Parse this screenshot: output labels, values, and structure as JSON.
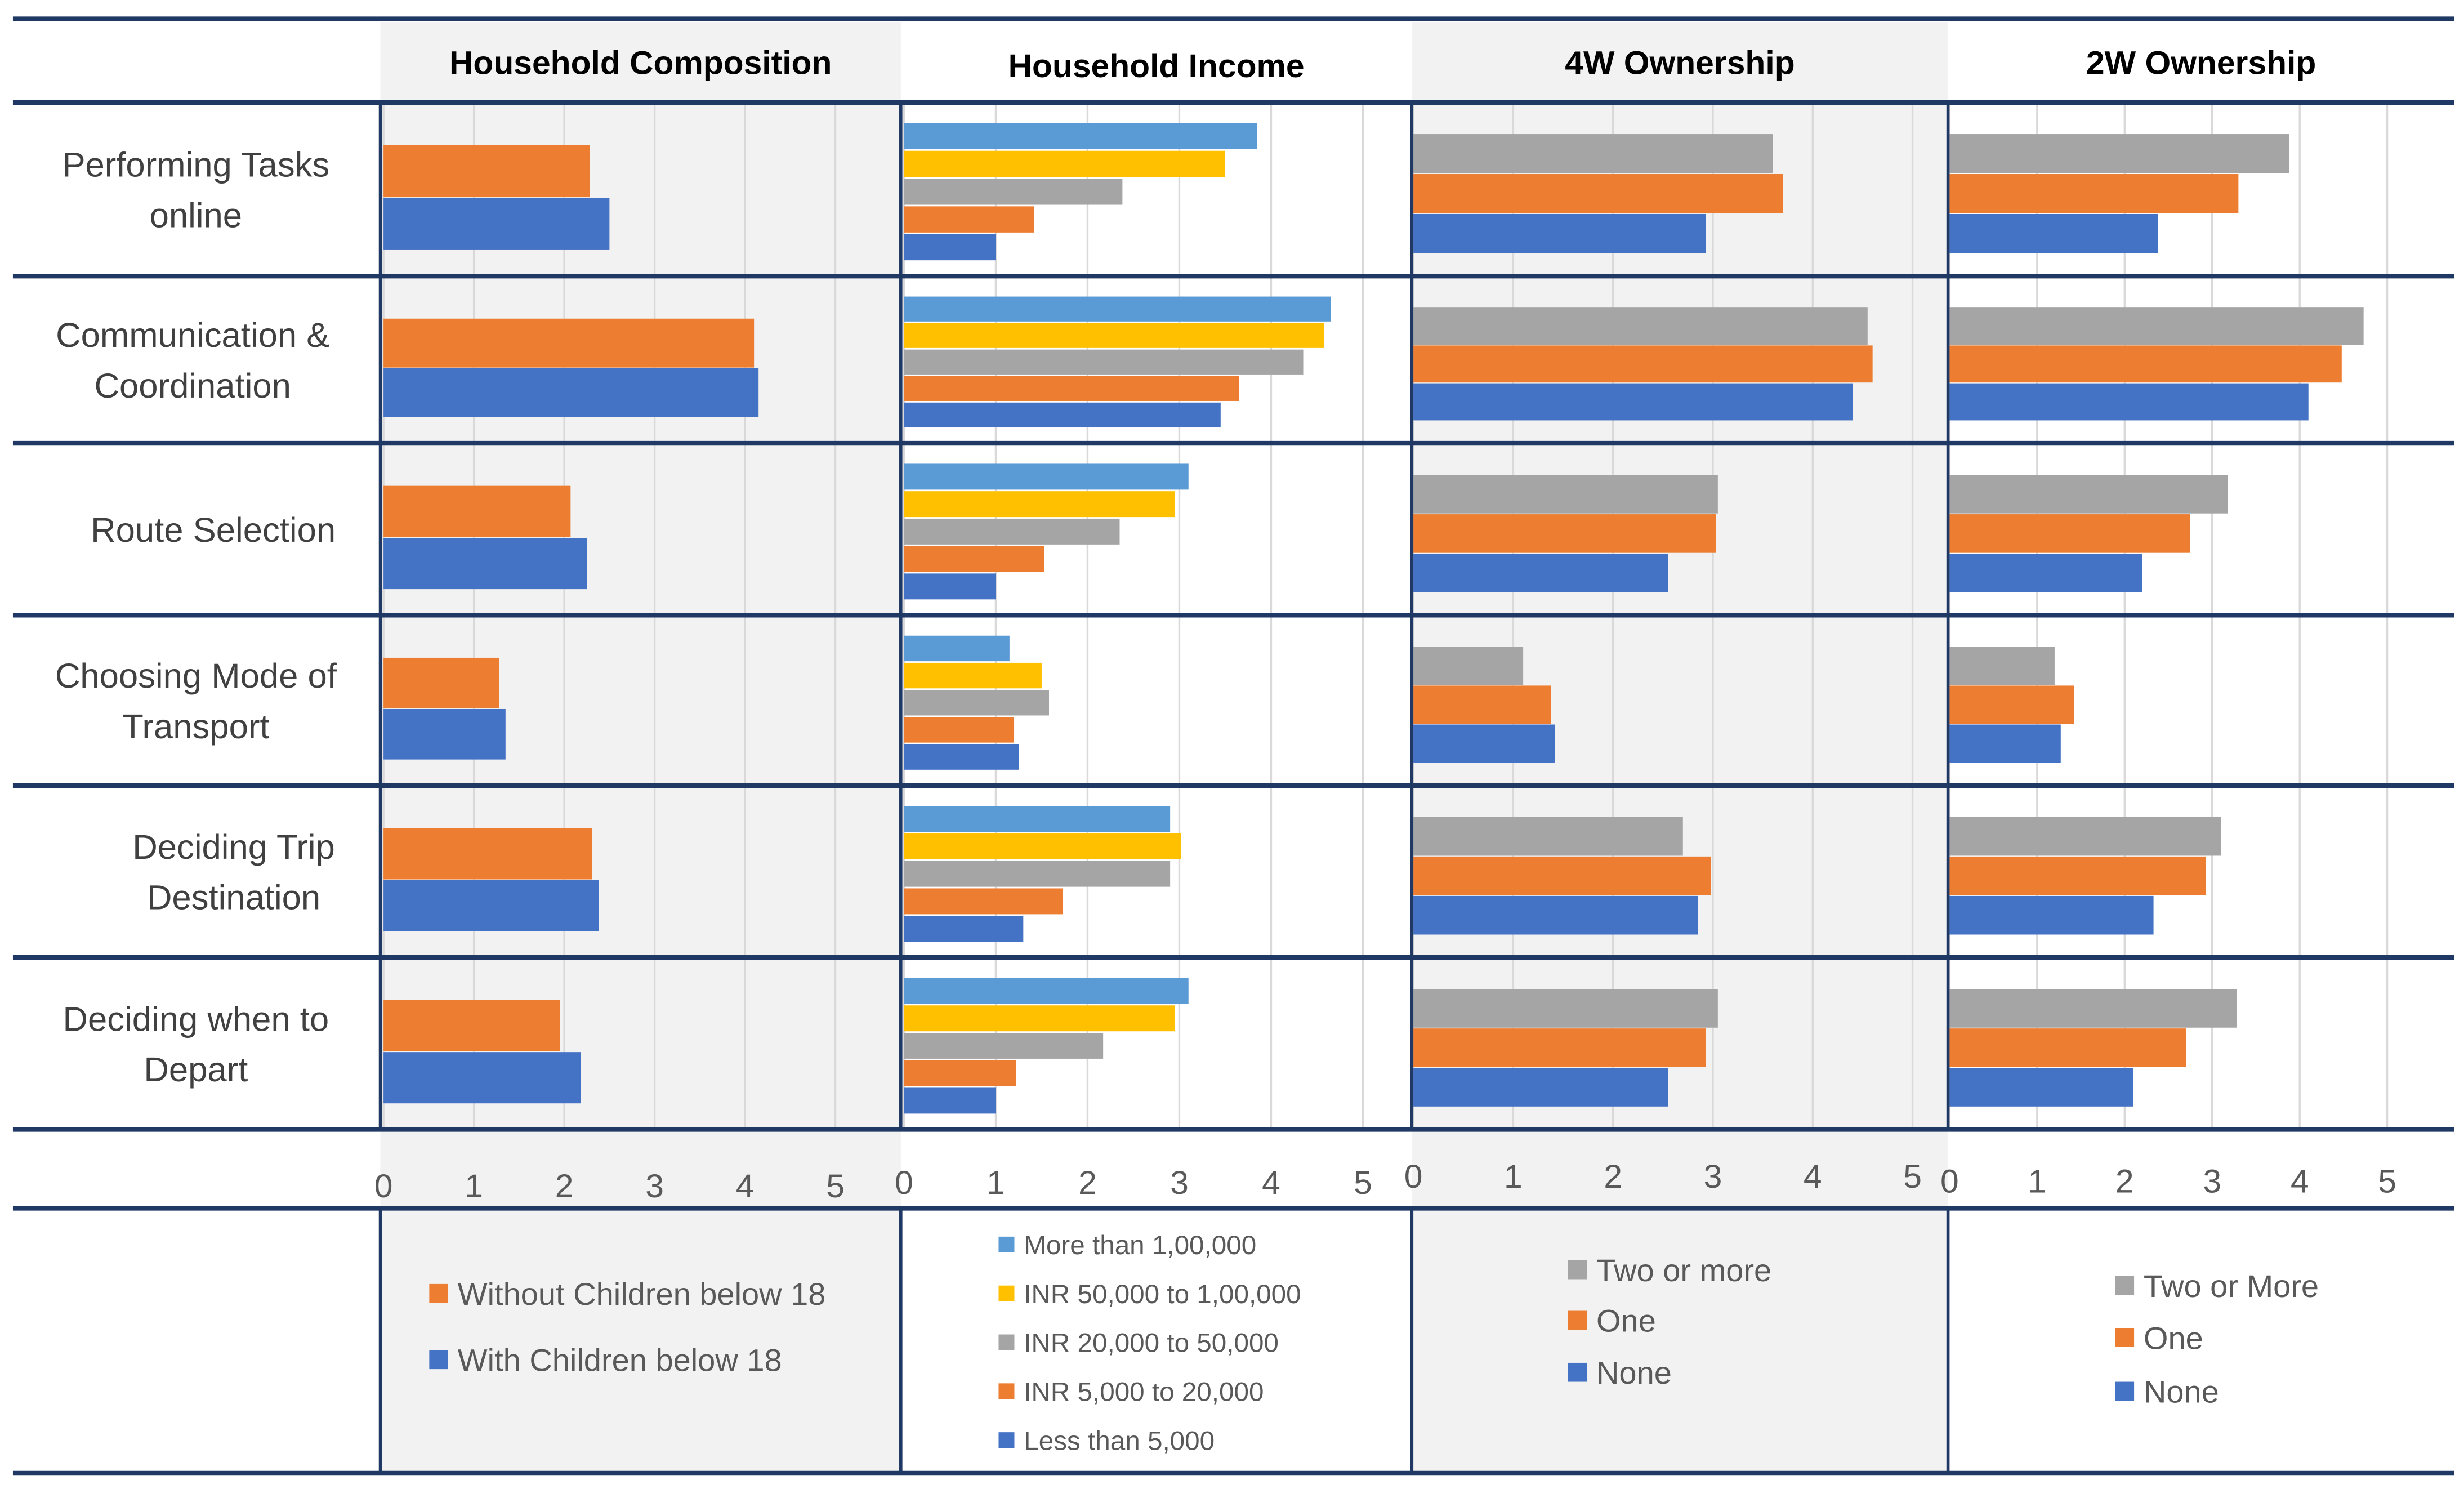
{
  "figure": {
    "rows": [
      "Performing Tasks online",
      "Communication & Coordination",
      "Route Selection",
      "Choosing Mode of Transport",
      "Deciding Trip Destination",
      "Deciding when to Depart"
    ],
    "axis_ticks": [
      "0",
      "1",
      "2",
      "3",
      "4",
      "5"
    ]
  },
  "colors": {
    "blue": "#4472C4",
    "orange": "#ED7D31",
    "gray": "#A5A5A5",
    "yellow": "#FFC000",
    "lightblue": "#5B9BD5",
    "navy": "#1F3864",
    "panel_bg": "#F2F2F2",
    "grid": "#D9D9D9"
  },
  "chart_data": [
    {
      "type": "bar",
      "orientation": "horizontal",
      "title": "Household Composition",
      "categories": [
        "Performing Tasks online",
        "Communication & Coordination",
        "Route Selection",
        "Choosing Mode of Transport",
        "Deciding Trip Destination",
        "Deciding when to Depart"
      ],
      "xlim": [
        0,
        5.5
      ],
      "xticks": [
        0,
        1,
        2,
        3,
        4,
        5
      ],
      "series": [
        {
          "name": "Without Children below 18",
          "color": "#ED7D31",
          "values": [
            2.28,
            4.1,
            2.07,
            1.28,
            2.31,
            1.95
          ]
        },
        {
          "name": "With Children below 18",
          "color": "#4472C4",
          "values": [
            2.5,
            4.15,
            2.25,
            1.35,
            2.38,
            2.18
          ]
        }
      ],
      "legend": [
        "Without Children below 18",
        "With Children below 18"
      ]
    },
    {
      "type": "bar",
      "orientation": "horizontal",
      "title": "Household Income",
      "categories": [
        "Performing Tasks online",
        "Communication & Coordination",
        "Route Selection",
        "Choosing Mode of Transport",
        "Deciding Trip Destination",
        "Deciding when to Depart"
      ],
      "xlim": [
        0,
        5.5
      ],
      "xticks": [
        0,
        1,
        2,
        3,
        4,
        5
      ],
      "series": [
        {
          "name": "More than 1,00,000",
          "color": "#5B9BD5",
          "values": [
            3.85,
            4.65,
            3.1,
            1.15,
            2.9,
            3.1
          ]
        },
        {
          "name": "INR 50,000 to 1,00,000",
          "color": "#FFC000",
          "values": [
            3.5,
            4.58,
            2.95,
            1.5,
            3.02,
            2.95
          ]
        },
        {
          "name": "INR 20,000 to 50,000",
          "color": "#A5A5A5",
          "values": [
            2.38,
            4.35,
            2.35,
            1.58,
            2.9,
            2.17
          ]
        },
        {
          "name": "INR 5,000 to 20,000",
          "color": "#ED7D31",
          "values": [
            1.42,
            3.65,
            1.53,
            1.2,
            1.73,
            1.22
          ]
        },
        {
          "name": "Less than 5,000",
          "color": "#4472C4",
          "values": [
            1.0,
            3.45,
            1.0,
            1.25,
            1.3,
            1.0
          ]
        }
      ],
      "legend": [
        "More than 1,00,000",
        "INR 50,000 to 1,00,000",
        "INR 20,000 to 50,000",
        "INR 5,000 to 20,000",
        "Less than 5,000"
      ]
    },
    {
      "type": "bar",
      "orientation": "horizontal",
      "title": "4W Ownership",
      "categories": [
        "Performing Tasks online",
        "Communication & Coordination",
        "Route Selection",
        "Choosing Mode of Transport",
        "Deciding Trip Destination",
        "Deciding when to Depart"
      ],
      "xlim": [
        0,
        5.3
      ],
      "xticks": [
        0,
        1,
        2,
        3,
        4,
        5
      ],
      "series": [
        {
          "name": "Two or more",
          "color": "#A5A5A5",
          "values": [
            3.6,
            4.55,
            3.05,
            1.1,
            2.7,
            3.05
          ]
        },
        {
          "name": "One",
          "color": "#ED7D31",
          "values": [
            3.7,
            4.6,
            3.03,
            1.38,
            2.98,
            2.93
          ]
        },
        {
          "name": "None",
          "color": "#4472C4",
          "values": [
            2.93,
            4.4,
            2.55,
            1.42,
            2.85,
            2.55
          ]
        }
      ],
      "legend": [
        "Two or more",
        "One",
        "None"
      ]
    },
    {
      "type": "bar",
      "orientation": "horizontal",
      "title": "2W Ownership",
      "categories": [
        "Performing Tasks online",
        "Communication & Coordination",
        "Route Selection",
        "Choosing Mode of Transport",
        "Deciding Trip Destination",
        "Deciding when to Depart"
      ],
      "xlim": [
        0,
        5.6
      ],
      "xticks": [
        0,
        1,
        2,
        3,
        4,
        5
      ],
      "series": [
        {
          "name": "Two or More",
          "color": "#A5A5A5",
          "values": [
            3.88,
            4.73,
            3.18,
            1.2,
            3.1,
            3.28
          ]
        },
        {
          "name": "One",
          "color": "#ED7D31",
          "values": [
            3.3,
            4.48,
            2.75,
            1.42,
            2.93,
            2.7
          ]
        },
        {
          "name": "None",
          "color": "#4472C4",
          "values": [
            2.38,
            4.1,
            2.2,
            1.27,
            2.33,
            2.1
          ]
        }
      ],
      "legend": [
        "Two or More",
        "One",
        "None"
      ]
    }
  ]
}
